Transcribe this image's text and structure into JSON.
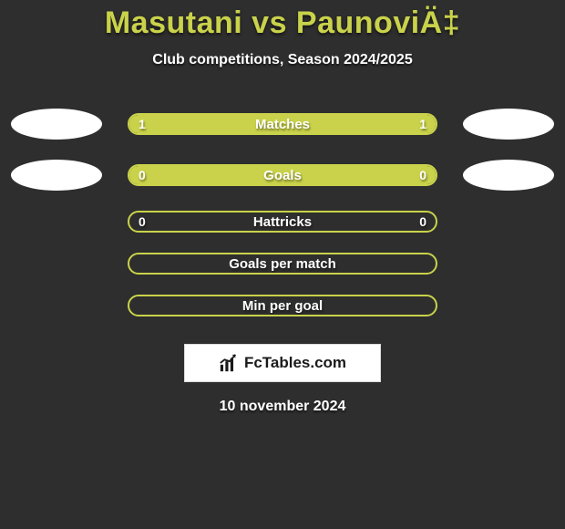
{
  "title": "Masutani vs PaunoviÄ‡",
  "subtitle": "Club competitions, Season 2024/2025",
  "colors": {
    "accent": "#c9d24a",
    "background": "#2e2e2e",
    "oval": "#ffffff",
    "text": "#ffffff"
  },
  "rows": [
    {
      "label": "Matches",
      "left": "1",
      "right": "1",
      "filled": true,
      "show_ovals": true,
      "show_values": true
    },
    {
      "label": "Goals",
      "left": "0",
      "right": "0",
      "filled": true,
      "show_ovals": true,
      "show_values": true
    },
    {
      "label": "Hattricks",
      "left": "0",
      "right": "0",
      "filled": false,
      "show_ovals": false,
      "show_values": true
    },
    {
      "label": "Goals per match",
      "left": "",
      "right": "",
      "filled": false,
      "show_ovals": false,
      "show_values": false
    },
    {
      "label": "Min per goal",
      "left": "",
      "right": "",
      "filled": false,
      "show_ovals": false,
      "show_values": false
    }
  ],
  "logo": {
    "text": "FcTables.com"
  },
  "date": "10 november 2024"
}
